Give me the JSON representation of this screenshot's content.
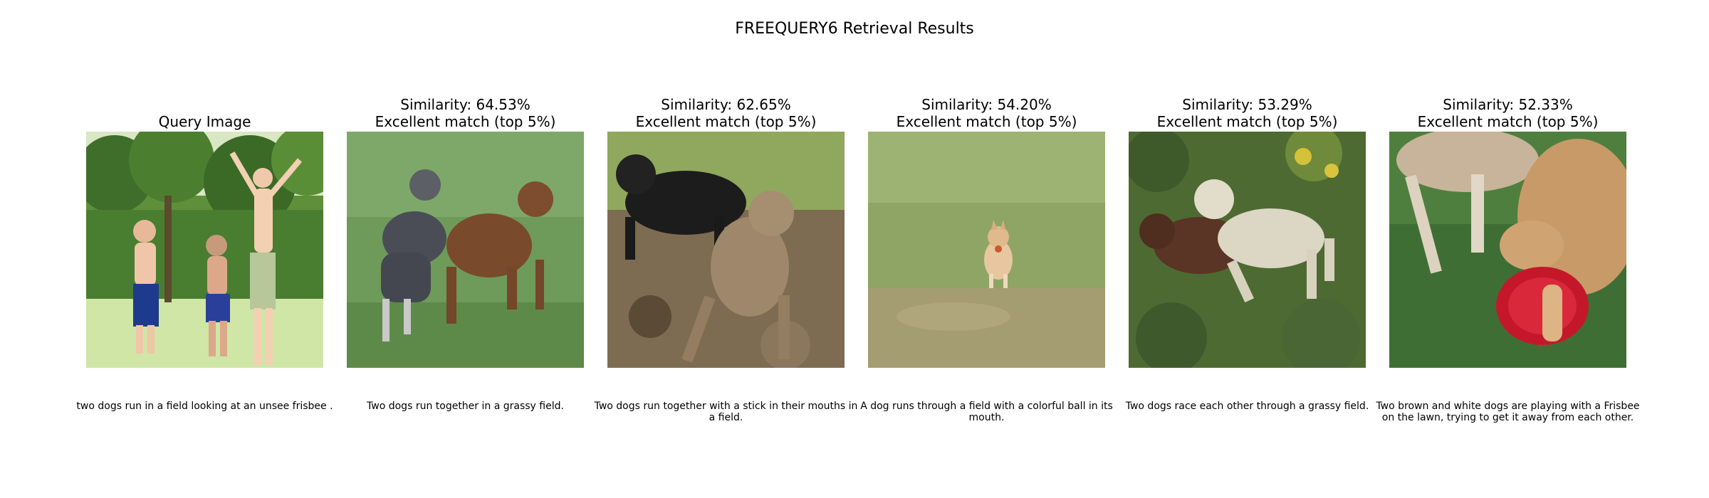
{
  "title": "FREEQUERY6 Retrieval Results",
  "panels": [
    {
      "heading": [
        "Query Image"
      ],
      "caption": "two dogs run in a field looking at an unsee frisbee .",
      "scene": "three children playing outdoors on grass with trees behind"
    },
    {
      "heading": [
        "Similarity: 64.53%",
        "Excellent match (top 5%)"
      ],
      "caption": "Two dogs run together in a grassy field.",
      "scene": "grey terrier and brown curly dog running on grass"
    },
    {
      "heading": [
        "Similarity: 62.65%",
        "Excellent match (top 5%)"
      ],
      "caption": "Two dogs run together with a stick in their mouths in a field.",
      "scene": "black dog and tan weimaraner running on leafy ground"
    },
    {
      "heading": [
        "Similarity: 54.20%",
        "Excellent match (top 5%)"
      ],
      "caption": "A dog runs through a field with a colorful ball in its mouth.",
      "scene": "small tan dog running in a wide open grass field"
    },
    {
      "heading": [
        "Similarity: 53.29%",
        "Excellent match (top 5%)"
      ],
      "caption": "Two dogs race each other through a grassy field.",
      "scene": "white dog and brown dog wrestling among shrubs"
    },
    {
      "heading": [
        "Similarity: 52.33%",
        "Excellent match (top 5%)"
      ],
      "caption": "Two brown and white dogs are playing with a Frisbee on the lawn, trying to get it away from each other.",
      "scene": "golden dog holding a red frisbee on a lawn"
    }
  ]
}
